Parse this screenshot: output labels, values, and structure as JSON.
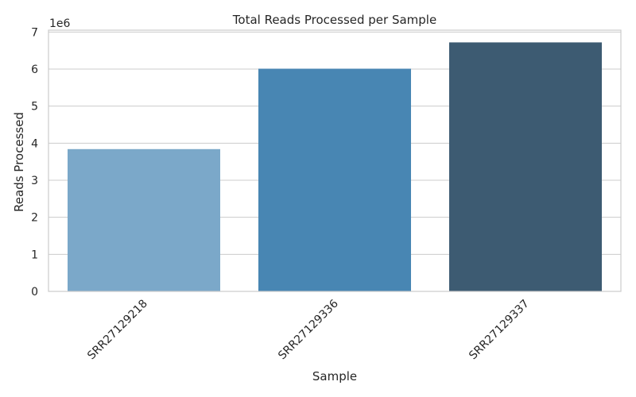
{
  "chart_data": {
    "type": "bar",
    "title": "Total Reads Processed per Sample",
    "xlabel": "Sample",
    "ylabel": "Reads Processed",
    "y_offset_label": "1e6",
    "categories": [
      "SRR27129218",
      "SRR27129336",
      "SRR27129337"
    ],
    "values": [
      3840000,
      6010000,
      6720000
    ],
    "colors": [
      "#7ba8c9",
      "#4886b3",
      "#3d5b72"
    ],
    "ylim": [
      0,
      7050000
    ],
    "yticks": [
      0,
      1000000,
      2000000,
      3000000,
      4000000,
      5000000,
      6000000,
      7000000
    ],
    "ytick_labels": [
      "0",
      "1",
      "2",
      "3",
      "4",
      "5",
      "6",
      "7"
    ],
    "grid": "y",
    "legend": "none"
  }
}
